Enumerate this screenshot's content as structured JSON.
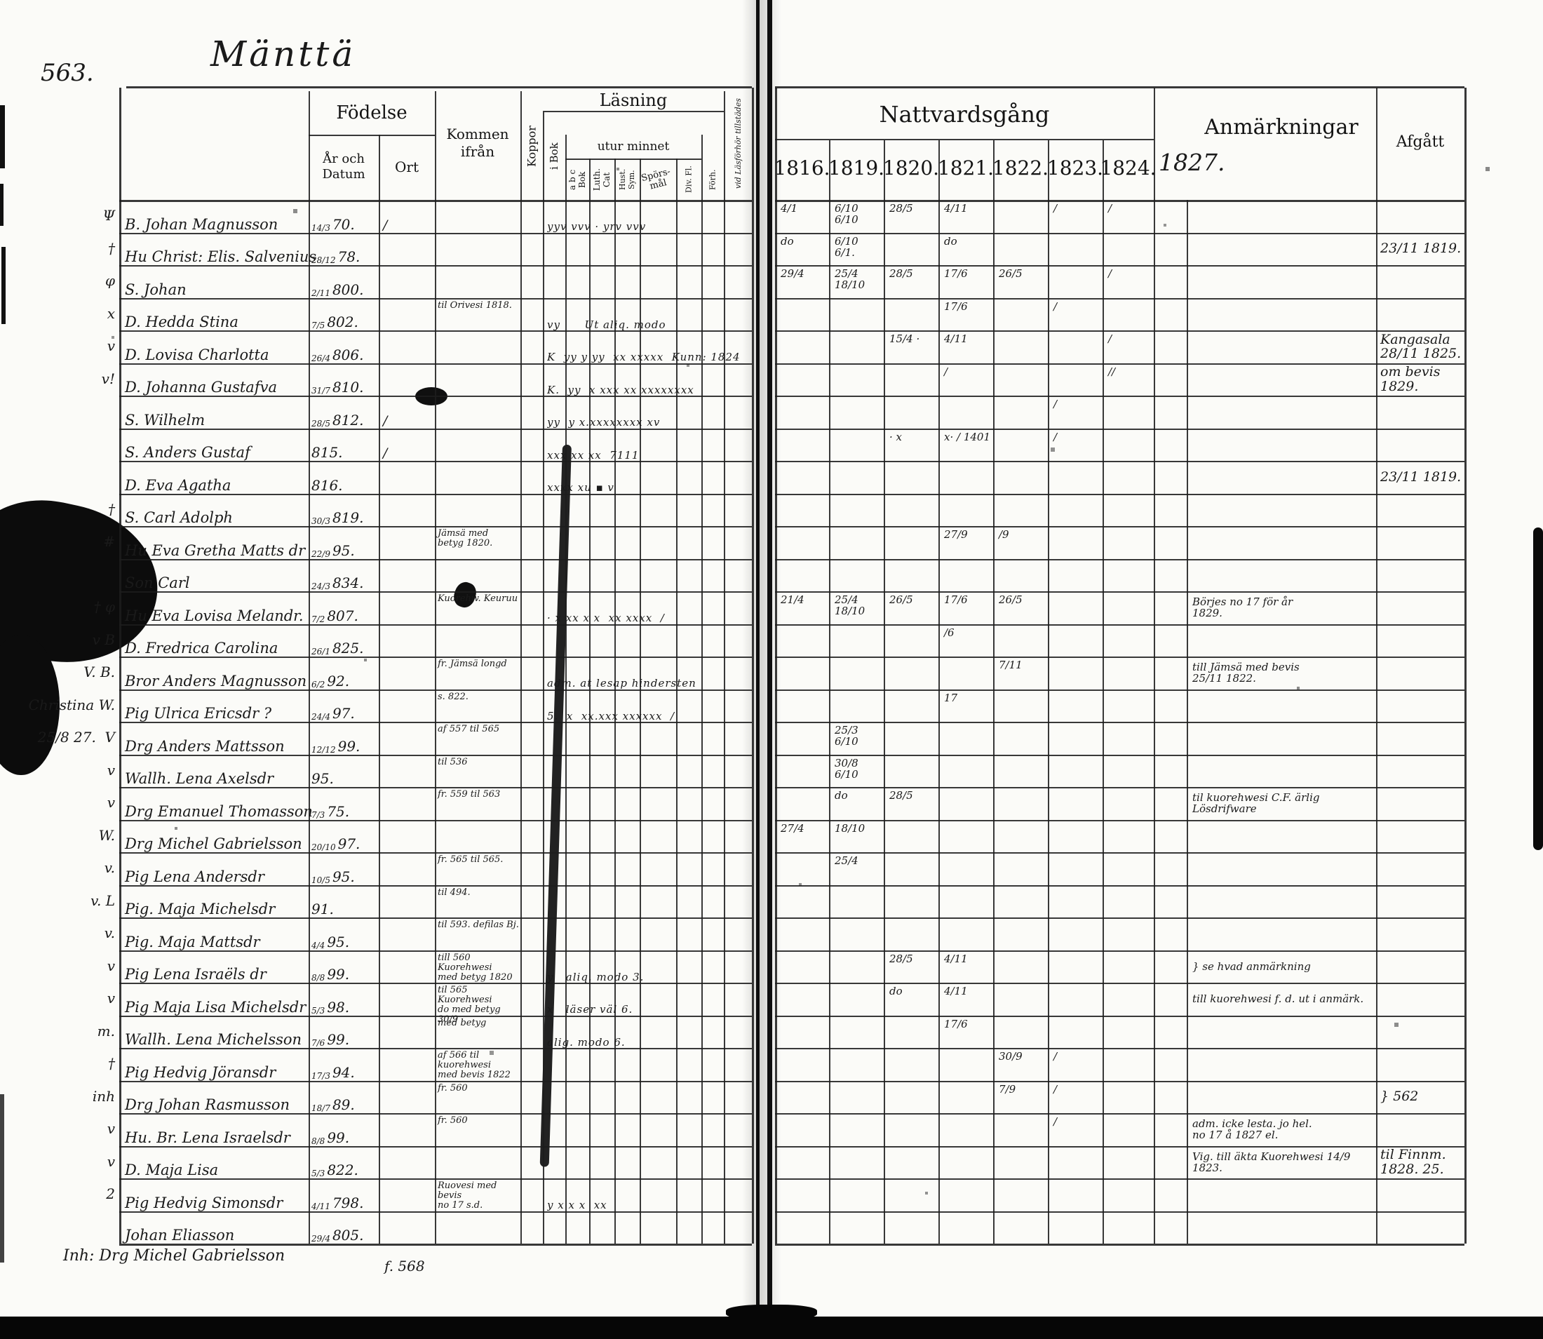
{
  "page": {
    "number": "563.",
    "title": "Mänttä"
  },
  "headers": {
    "left": {
      "fodelse": "Födelse",
      "ar_och_datum": "År och Datum",
      "ort": "Ort",
      "kommen_ifran": "Kommen ifrån",
      "koppor": "Koppor",
      "lasning": "Läsning",
      "i_bok": "i Bok",
      "utur_minnet": "utur minnet",
      "abc_bok": "a b c Bok",
      "luth_cat": "Luth. Cat",
      "hustafla": "Hust. Sym.",
      "sporsmal": "Spörs-\nmål",
      "div_fl": "Div. Fl.",
      "forhor": "Förh.",
      "vid_lasforhor": "vid Läsförhör tillstädes"
    },
    "right": {
      "nattvardsgang": "Nattvardsgång",
      "years": [
        "1816.",
        "1819.",
        "1820.",
        "1821.",
        "1822.",
        "1823.",
        "1824.",
        "1827."
      ],
      "anmarkningar": "Anmärkningar",
      "afgatt": "Afgått"
    }
  },
  "rows": [
    {
      "m": "Ψ",
      "n": "B. Johan Magnusson",
      "b": "14/3 70.",
      "o": "/",
      "f": "",
      "r": "yyv vvv · yrv vvv",
      "c": [
        "4/1",
        "6/10  6/10",
        "28/5",
        "4/11",
        "",
        "/",
        "/",
        ""
      ],
      "a": "",
      "g": ""
    },
    {
      "m": "†",
      "n": "Hu Christ: Elis. Salvenius",
      "b": "28/12 78.",
      "o": "",
      "f": "",
      "r": "",
      "c": [
        "do",
        "6/10  6/1.",
        "",
        "do",
        "",
        "",
        "",
        ""
      ],
      "a": "",
      "g": "23/11 1819."
    },
    {
      "m": "φ",
      "n": "S. Johan",
      "b": "2/11 800.",
      "o": "",
      "f": "",
      "r": "",
      "c": [
        "29/4",
        "25/4  18/10",
        "28/5",
        "17/6",
        "26/5",
        "",
        "/",
        ""
      ],
      "a": "",
      "g": ""
    },
    {
      "m": "x",
      "n": "D. Hedda Stina",
      "b": "7/5 802.",
      "o": "",
      "f": "til Orivesi 1818.",
      "r": "vy      Ut aliq. modo",
      "c": [
        "",
        "",
        "",
        "17/6",
        "",
        "/",
        "",
        ""
      ],
      "a": "",
      "g": ""
    },
    {
      "m": "v",
      "n": "D. Lovisa Charlotta",
      "b": "26/4 806.",
      "o": "",
      "f": "",
      "r": "K  yy y yy  xx xxxxx  Kunn: 1824",
      "c": [
        "",
        "",
        "15/4 ·",
        "4/11",
        "",
        "",
        "/",
        ""
      ],
      "a": "",
      "g": "Kangasala\n28/11 1825."
    },
    {
      "m": "v!",
      "n": "D. Johanna Gustafva",
      "b": "31/7 810.",
      "o": "",
      "f": "",
      "r": "K.  yy  x xxx xx xxxxxxxx",
      "c": [
        "",
        "",
        "",
        "/",
        "",
        "",
        "//",
        ""
      ],
      "a": "",
      "g": "om bevis\n1829."
    },
    {
      "m": "",
      "n": "S. Wilhelm",
      "b": "28/5 812.",
      "o": "/",
      "f": "",
      "r": "yy  y x.xxxxxxxx xv",
      "c": [
        "",
        "",
        "",
        "",
        "",
        "/",
        "",
        ""
      ],
      "a": "",
      "g": ""
    },
    {
      "m": "",
      "n": "S. Anders Gustaf",
      "b": "815.",
      "o": "/",
      "f": "",
      "r": "xxx xx xx  7111",
      "c": [
        "",
        "",
        "· x",
        "x· / 1401",
        "",
        "/",
        "",
        ""
      ],
      "a": "",
      "g": ""
    },
    {
      "m": "",
      "n": "D. Eva Agatha",
      "b": "816.",
      "o": "",
      "f": "",
      "r": "xxxx xu ▪ v",
      "c": [
        "",
        "",
        "",
        "",
        "",
        "",
        "",
        ""
      ],
      "a": "",
      "g": "23/11 1819."
    },
    {
      "m": "†",
      "n": "S. Carl Adolph",
      "b": "30/3 819.",
      "o": "",
      "f": "",
      "r": "",
      "c": [
        "",
        "",
        "",
        "",
        "",
        "",
        "",
        ""
      ],
      "a": "",
      "g": ""
    },
    {
      "m": "#",
      "n": "Hu Eva Gretha Matts dr",
      "b": "22/9 95.",
      "o": "",
      "f": "Jämsä med\nbetyg 1820.",
      "r": "",
      "c": [
        "",
        "",
        "",
        "27/9",
        "/9",
        "",
        "",
        ""
      ],
      "a": "",
      "g": ""
    },
    {
      "m": "",
      "n": "Son Carl",
      "b": "24/3 834.",
      "o": "",
      "f": "",
      "r": "",
      "c": [
        "",
        "",
        "",
        "",
        "",
        "",
        "",
        ""
      ],
      "a": "",
      "g": ""
    },
    {
      "m": "† φ",
      "n": "Hu Eva Lovisa Melandr.",
      "b": "7/2 807.",
      "o": "",
      "f": "Kuorehw.  Keuruu",
      "r": "· x xx x x  xx xxxx  /",
      "c": [
        "21/4",
        "25/4  18/10",
        "26/5",
        "17/6",
        "26/5",
        "",
        "",
        ""
      ],
      "a": "Börjes no 17 för år\n1829.",
      "g": ""
    },
    {
      "m": "v B",
      "n": "D. Fredrica Carolina",
      "b": "26/1 825.",
      "o": "",
      "f": "",
      "r": "",
      "c": [
        "",
        "",
        "",
        "/6",
        "",
        "",
        "",
        ""
      ],
      "a": "",
      "g": ""
    },
    {
      "m": "V. B.",
      "n": "Bror Anders Magnusson",
      "b": "6/2 92.",
      "o": "",
      "f": "fr. Jämsä  longd",
      "r": "adm. at lesap hindersten",
      "c": [
        "",
        "",
        "",
        "",
        "7/11",
        "",
        "",
        ""
      ],
      "a": "till Jämsä med bevis\n25/11 1822.",
      "g": ""
    },
    {
      "m": "Christina W.",
      "n": "Pig Ulrica Ericsdr ?",
      "b": "24/4 97.",
      "o": "",
      "f": "s. 822.",
      "r": "5.  x  xx.xxx xxxxxx  /",
      "c": [
        "",
        "",
        "",
        "17",
        "",
        "",
        "",
        ""
      ],
      "a": "",
      "g": ""
    },
    {
      "m": "25/8 27.  V",
      "n": "Drg Anders Mattsson",
      "b": "12/12 99.",
      "o": "",
      "f": "af 557 til 565",
      "r": "",
      "c": [
        "",
        "25/3 6/10",
        "",
        "",
        "",
        "",
        "",
        ""
      ],
      "a": "",
      "g": ""
    },
    {
      "m": "v",
      "n": "Wallh. Lena Axelsdr",
      "b": "95.",
      "o": "",
      "f": "til 536",
      "r": "",
      "c": [
        "",
        "30/8 6/10",
        "",
        "",
        "",
        "",
        "",
        ""
      ],
      "a": "",
      "g": ""
    },
    {
      "m": "v",
      "n": "Drg Emanuel Thomasson",
      "b": "7/3 75.",
      "o": "",
      "f": "fr. 559  til 563",
      "r": "",
      "c": [
        "",
        "do",
        "28/5",
        "",
        "",
        "",
        "",
        ""
      ],
      "a": "til kuorehwesi C.F. ärlig Lösdrifware",
      "g": ""
    },
    {
      "m": "W.",
      "n": "Drg Michel Gabrielsson",
      "b": "20/10 97.",
      "o": "",
      "f": "",
      "r": "",
      "c": [
        "27/4",
        "18/10",
        "",
        "",
        "",
        "",
        "",
        ""
      ],
      "a": "",
      "g": ""
    },
    {
      "m": "v.",
      "n": "Pig Lena Andersdr",
      "b": "10/5 95.",
      "o": "",
      "f": "fr. 565  til 565.",
      "r": "",
      "c": [
        "",
        "25/4",
        "",
        "",
        "",
        "",
        "",
        ""
      ],
      "a": "",
      "g": ""
    },
    {
      "m": "v. L",
      "n": "Pig. Maja Michelsdr",
      "b": "91.",
      "o": "",
      "f": "til 494.",
      "r": "",
      "c": [
        "",
        "",
        "",
        "",
        "",
        "",
        "",
        ""
      ],
      "a": "",
      "g": ""
    },
    {
      "m": "v.",
      "n": "Pig. Maja Mattsdr",
      "b": "4/4 95.",
      "o": "",
      "f": "til 593.  defilas Bj.",
      "r": "",
      "c": [
        "",
        "",
        "",
        "",
        "",
        "",
        "",
        ""
      ],
      "a": "",
      "g": ""
    },
    {
      "m": "v",
      "n": "Pig Lena Israëls dr",
      "b": "8/8 99.",
      "o": "",
      "f": "till 560  Kuorehwesi\nmed betyg 1820",
      "r": "y   aliq. modo 3.",
      "c": [
        "",
        "",
        "28/5",
        "4/11",
        "",
        "",
        "",
        ""
      ],
      "a": "} se hvad anmärkning",
      "g": ""
    },
    {
      "m": "v",
      "n": "Pig Maja Lisa Michelsdr",
      "b": "5/3 98.",
      "o": "",
      "f": "til 565  Kuorehwesi\ndo med betyg 30/9",
      "r": "x   läser väl 6.",
      "c": [
        "",
        "",
        "do",
        "4/11",
        "",
        "",
        "",
        ""
      ],
      "a": "till kuorehwesi f. d. ut i anmärk.",
      "g": ""
    },
    {
      "m": "m.",
      "n": "Wallh. Lena Michelsson",
      "b": "7/6 99.",
      "o": "",
      "f": "med betyg",
      "r": "alig. modo 6.",
      "c": [
        "",
        "",
        "",
        "17/6",
        "",
        "",
        "",
        ""
      ],
      "a": "",
      "g": ""
    },
    {
      "m": "†",
      "n": "Pig Hedvig Jöransdr",
      "b": "17/3 94.",
      "o": "",
      "f": "af 566  til kuorehwesi\nmed bevis 1822",
      "r": "",
      "c": [
        "",
        "",
        "",
        "",
        "30/9",
        "/",
        "",
        ""
      ],
      "a": "",
      "g": ""
    },
    {
      "m": "inh",
      "n": "Drg Johan Rasmusson",
      "b": "18/7 89.",
      "o": "",
      "f": "fr. 560",
      "r": "",
      "c": [
        "",
        "",
        "",
        "",
        "7/9",
        "/",
        "",
        ""
      ],
      "a": "",
      "g": "} 562"
    },
    {
      "m": "v",
      "n": "Hu. Br. Lena Israelsdr",
      "b": "8/8 99.",
      "o": "",
      "f": "fr. 560",
      "r": "",
      "c": [
        "",
        "",
        "",
        "",
        "",
        "/",
        "",
        ""
      ],
      "a": "adm. icke lesta. jo hel.\nno 17 å 1827 el.",
      "g": ""
    },
    {
      "m": "v",
      "n": "D. Maja Lisa",
      "b": "5/3 822.",
      "o": "",
      "f": "",
      "r": "",
      "c": [
        "",
        "",
        "",
        "",
        "",
        "",
        "",
        ""
      ],
      "a": "Vig. till äkta Kuorehwesi 14/9 1823.",
      "g": "til Finnm.\n1828. 25."
    },
    {
      "m": "2",
      "n": "Pig Hedvig Simonsdr",
      "b": "4/11 798.",
      "o": "",
      "f": "Ruovesi  med bevis\nno 17 s.d.",
      "r": "y x x x  xx",
      "c": [
        "",
        "",
        "",
        "",
        "",
        "",
        "",
        ""
      ],
      "a": "",
      "g": ""
    },
    {
      "m": "",
      "n": "Johan Eliasson",
      "b": "29/4 805.",
      "o": "",
      "f": "",
      "r": "",
      "c": [
        "",
        "",
        "",
        "",
        "",
        "",
        "",
        ""
      ],
      "a": "",
      "g": ""
    }
  ],
  "bottom_notes": {
    "left": "Inh: Drg Michel Gabrielsson",
    "center": "f. 568"
  },
  "colors": {
    "ink": "#1c1c1c",
    "paper": "#fbfbf8",
    "stain": "#0c0c0c"
  }
}
